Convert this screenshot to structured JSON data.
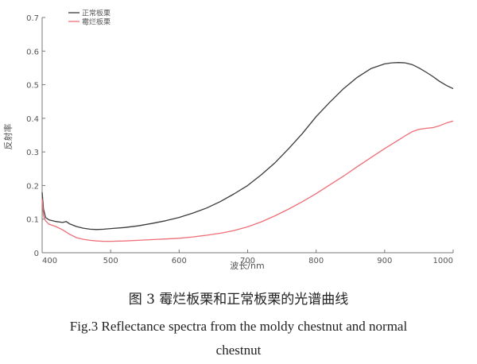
{
  "chart_data": {
    "type": "line",
    "title": "",
    "xlabel": "波长/nm",
    "ylabel": "反射率",
    "xlim": [
      400,
      1000
    ],
    "ylim": [
      0,
      0.7
    ],
    "xticks": [
      "400",
      "500",
      "600",
      "700",
      "800",
      "900",
      "1000"
    ],
    "yticks": [
      "0",
      "0.1",
      "0.2",
      "0.3",
      "0.4",
      "0.5",
      "0.6",
      "0.7"
    ],
    "legend_position": "top-left",
    "grid": false,
    "series": [
      {
        "name": "正常板栗",
        "color": "#3a3a3a",
        "x": [
          400,
          402,
          405,
          410,
          420,
          430,
          435,
          440,
          450,
          460,
          470,
          480,
          490,
          500,
          520,
          540,
          560,
          580,
          600,
          620,
          640,
          660,
          680,
          700,
          720,
          740,
          760,
          780,
          800,
          820,
          840,
          860,
          880,
          900,
          910,
          920,
          930,
          940,
          950,
          960,
          970,
          980,
          990,
          1000
        ],
        "y": [
          0.18,
          0.13,
          0.105,
          0.098,
          0.093,
          0.09,
          0.093,
          0.086,
          0.078,
          0.073,
          0.07,
          0.069,
          0.07,
          0.072,
          0.075,
          0.08,
          0.087,
          0.095,
          0.105,
          0.118,
          0.133,
          0.152,
          0.175,
          0.2,
          0.232,
          0.268,
          0.31,
          0.355,
          0.405,
          0.448,
          0.488,
          0.522,
          0.548,
          0.562,
          0.565,
          0.566,
          0.565,
          0.56,
          0.55,
          0.538,
          0.525,
          0.51,
          0.498,
          0.488
        ]
      },
      {
        "name": "霉烂板栗",
        "color": "#ee6e78",
        "x": [
          400,
          402,
          405,
          410,
          420,
          430,
          440,
          450,
          460,
          470,
          480,
          490,
          500,
          520,
          540,
          560,
          580,
          600,
          620,
          640,
          660,
          680,
          700,
          720,
          740,
          760,
          780,
          800,
          820,
          840,
          860,
          880,
          900,
          920,
          930,
          940,
          950,
          960,
          970,
          980,
          990,
          1000
        ],
        "y": [
          0.16,
          0.11,
          0.095,
          0.085,
          0.078,
          0.068,
          0.055,
          0.045,
          0.04,
          0.037,
          0.035,
          0.034,
          0.034,
          0.035,
          0.037,
          0.039,
          0.041,
          0.043,
          0.047,
          0.052,
          0.058,
          0.066,
          0.077,
          0.092,
          0.11,
          0.13,
          0.152,
          0.176,
          0.202,
          0.228,
          0.256,
          0.283,
          0.31,
          0.335,
          0.348,
          0.36,
          0.367,
          0.37,
          0.372,
          0.378,
          0.386,
          0.392
        ]
      }
    ]
  },
  "caption": {
    "cn": "图 3 霉烂板栗和正常板栗的光谱曲线",
    "en_line1": "Fig.3 Reflectance spectra from the moldy chestnut and normal",
    "en_line2": "chestnut"
  }
}
